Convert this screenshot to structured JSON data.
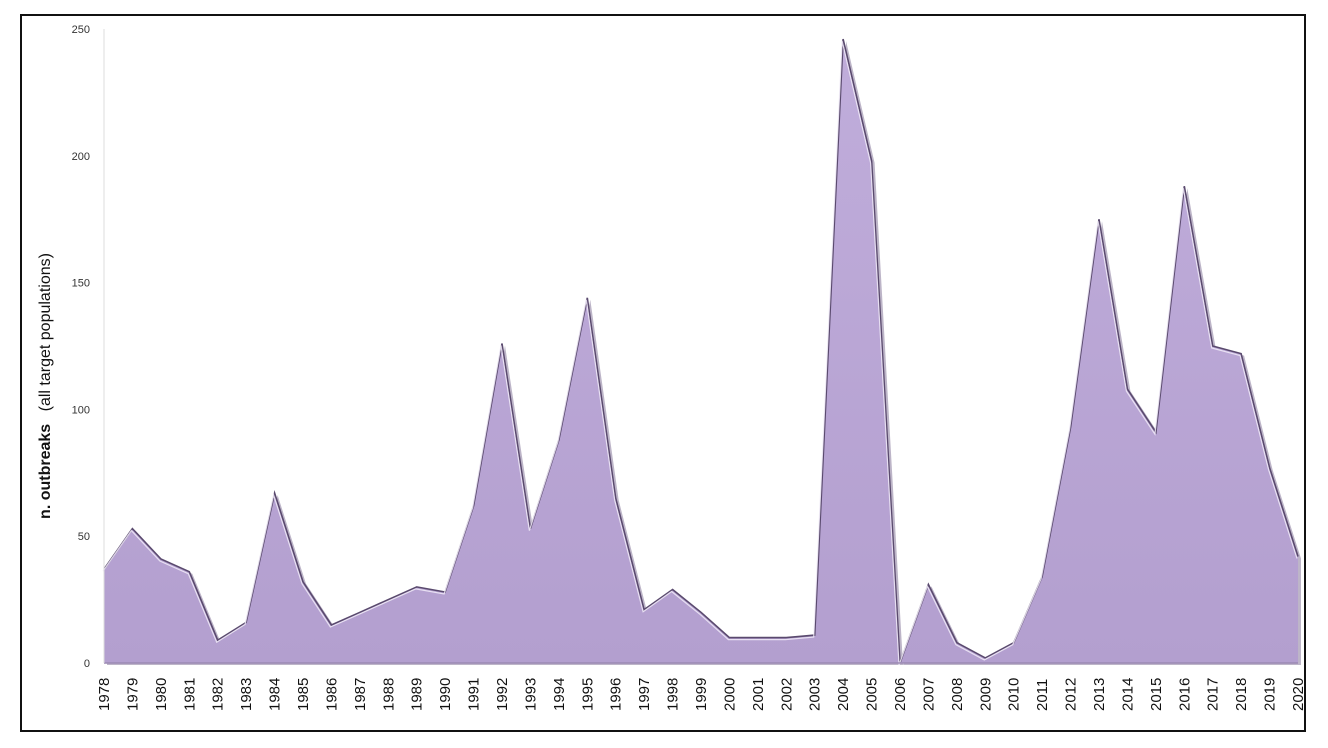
{
  "chart_data": {
    "type": "area",
    "title": "",
    "xlabel": "",
    "ylabel_bold": "n. outbreaks",
    "ylabel_rest": "(all target populations)",
    "ylim": [
      0,
      250
    ],
    "yticks": [
      0,
      50,
      100,
      150,
      200,
      250
    ],
    "grid": false,
    "legend": "none",
    "fill_color": "#bba8d5",
    "edge_color": "#5a4a6e",
    "categories": [
      "1978",
      "1979",
      "1980",
      "1981",
      "1982",
      "1983",
      "1984",
      "1985",
      "1986",
      "1987",
      "1988",
      "1989",
      "1990",
      "1991",
      "1992",
      "1993",
      "1994",
      "1995",
      "1996",
      "1997",
      "1998",
      "1999",
      "2000",
      "2001",
      "2002",
      "2003",
      "2004",
      "2005",
      "2006",
      "2007",
      "2008",
      "2009",
      "2010",
      "2011",
      "2012",
      "2013",
      "2014",
      "2015",
      "2016",
      "2017",
      "2018",
      "2019",
      "2020"
    ],
    "values": [
      37,
      53,
      41,
      36,
      9,
      16,
      67,
      32,
      15,
      20,
      25,
      30,
      28,
      62,
      126,
      53,
      88,
      144,
      65,
      21,
      29,
      20,
      10,
      10,
      10,
      11,
      246,
      198,
      0,
      31,
      8,
      2,
      8,
      34,
      93,
      175,
      108,
      91,
      188,
      125,
      122,
      77,
      42
    ]
  }
}
